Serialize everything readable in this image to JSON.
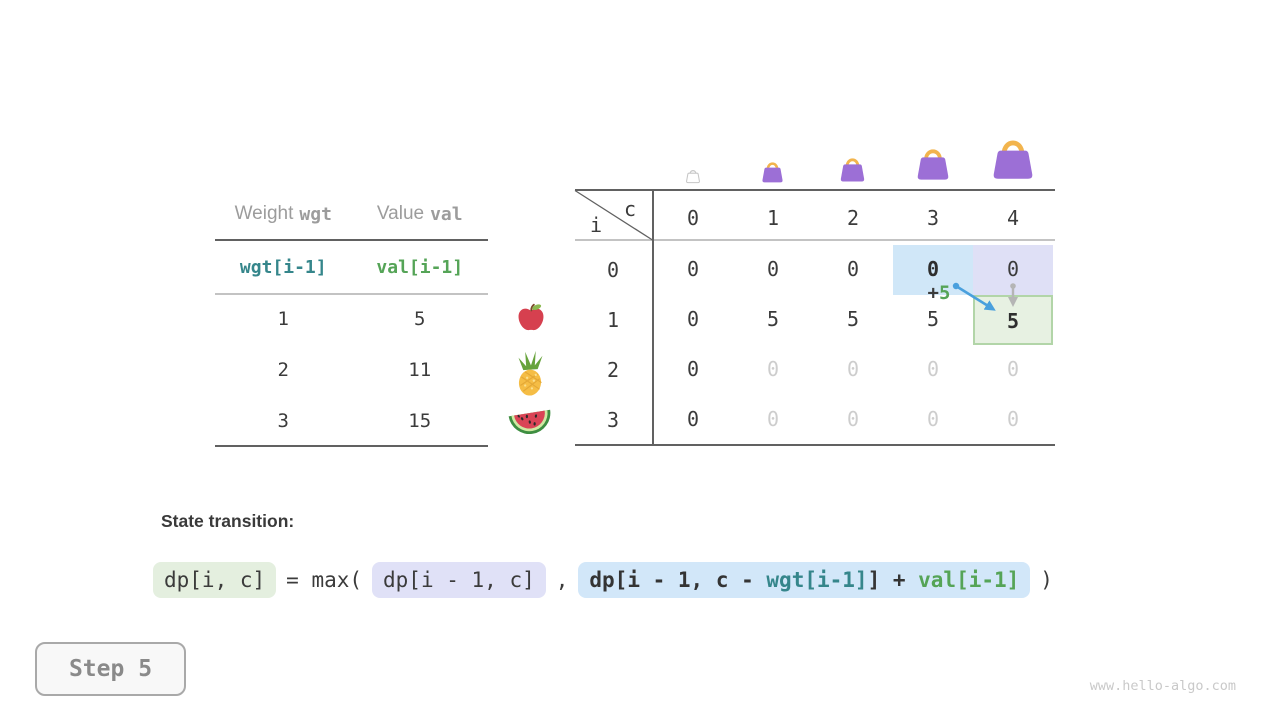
{
  "page": {
    "step_label": "Step 5",
    "watermark": "www.hello-algo.com"
  },
  "items_table": {
    "headers": [
      {
        "label": "Weight",
        "code": "wgt"
      },
      {
        "label": "Value",
        "code": "val"
      }
    ],
    "code_row": [
      "wgt[i-1]",
      "val[i-1]"
    ],
    "rows": [
      [
        "1",
        "5"
      ],
      [
        "2",
        "11"
      ],
      [
        "3",
        "15"
      ]
    ],
    "row_icons": [
      "apple-icon",
      "pineapple-icon",
      "watermelon-icon"
    ]
  },
  "dp_table": {
    "corner": {
      "col_var": "c",
      "row_var": "i"
    },
    "col_headers": [
      "0",
      "1",
      "2",
      "3",
      "4"
    ],
    "row_headers": [
      "0",
      "1",
      "2",
      "3"
    ],
    "capacity_icons": [
      "bag-tiny-icon",
      "bag-small-icon",
      "bag-medium-icon",
      "bag-large-icon",
      "bag-xlarge-icon"
    ],
    "values": [
      [
        "0",
        "0",
        "0",
        "0",
        "0"
      ],
      [
        "0",
        "5",
        "5",
        "5",
        "5"
      ],
      [
        "0",
        "0",
        "0",
        "0",
        "0"
      ],
      [
        "0",
        "0",
        "0",
        "0",
        "0"
      ]
    ],
    "cell_styles": [
      [
        "",
        "",
        "",
        "bold hl-blue",
        "hl-lav"
      ],
      [
        "",
        "",
        "",
        "",
        "bold hl-green"
      ],
      [
        "",
        "faded",
        "faded",
        "faded",
        "faded"
      ],
      [
        "",
        "faded",
        "faded",
        "faded",
        "faded"
      ]
    ],
    "annotation": {
      "plus": "+",
      "value": "5"
    }
  },
  "transition": {
    "label": "State transition:",
    "lhs": "dp[i, c]",
    "eq_max": "= max(",
    "arg1": "dp[i - 1, c]",
    "comma": ",",
    "arg2_segments": [
      {
        "text": "dp[i - 1, c - ",
        "color": "dark"
      },
      {
        "text": "wgt[i-1]",
        "color": "teal"
      },
      {
        "text": "] + ",
        "color": "dark"
      },
      {
        "text": "val[i-1]",
        "color": "green"
      }
    ],
    "close": ")"
  },
  "colors": {
    "teal": "#35868b",
    "green": "#55a457",
    "highlight_blue": "#d0e7f8",
    "highlight_lavender": "#dfe0f6",
    "highlight_green_bg": "#e7f1e2",
    "highlight_green_border": "#b2d5a8",
    "bag_purple": "#9c6fd6",
    "bag_handle": "#f2b44d",
    "arrow_blue": "#4aa0dd",
    "arrow_gray": "#b5b5b5",
    "faded_text": "#cdcdcd"
  }
}
